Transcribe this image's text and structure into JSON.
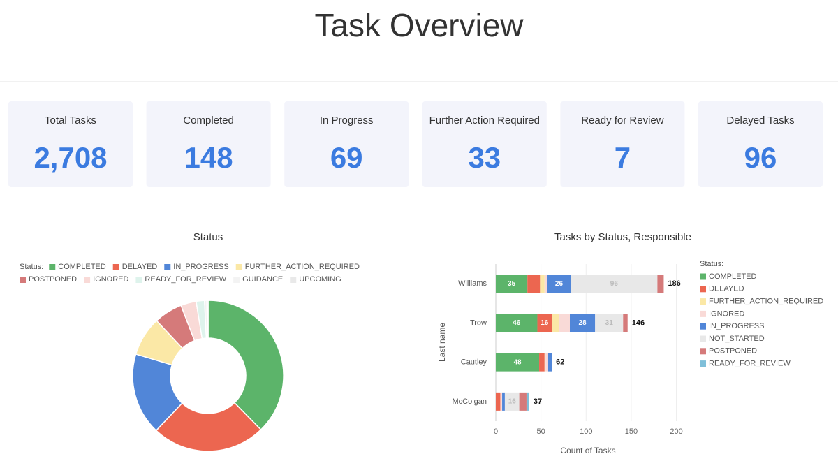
{
  "header": {
    "title": "Task Overview"
  },
  "kpis": [
    {
      "label": "Total Tasks",
      "value": 2708,
      "value_label": "2,708"
    },
    {
      "label": "Completed",
      "value": 148
    },
    {
      "label": "In Progress",
      "value": 69
    },
    {
      "label": "Further Action Required",
      "value": 33
    },
    {
      "label": "Ready for Review",
      "value": 7
    },
    {
      "label": "Delayed Tasks",
      "value": 96
    }
  ],
  "chart_data": [
    {
      "type": "pie",
      "title": "Status",
      "legend_title": "Status:",
      "donut": true,
      "categories": [
        "COMPLETED",
        "DELAYED",
        "IN_PROGRESS",
        "FURTHER_ACTION_REQUIRED",
        "POSTPONED",
        "IGNORED",
        "READY_FOR_REVIEW",
        "GUIDANCE",
        "UPCOMING"
      ],
      "values": [
        148,
        96,
        69,
        33,
        24,
        13,
        7,
        2,
        1
      ],
      "colors": [
        "#5cb46a",
        "#ec6650",
        "#5186d8",
        "#fbe8a6",
        "#d57a7a",
        "#f9dad7",
        "#def3ec",
        "#f3f3f3",
        "#e9e9e9"
      ]
    },
    {
      "type": "bar",
      "orientation": "horizontal",
      "stacked": true,
      "title": "Tasks by Status, Responsible",
      "x_label": "Count of Tasks",
      "y_label": "Last name",
      "legend_title": "Status:",
      "categories": [
        "Williams",
        "Trow",
        "Cautley",
        "McColgan"
      ],
      "series": [
        {
          "name": "COMPLETED",
          "color": "#5cb46a",
          "values": [
            35,
            46,
            48,
            null
          ]
        },
        {
          "name": "DELAYED",
          "color": "#ec6650",
          "values": [
            14,
            16,
            6,
            5
          ]
        },
        {
          "name": "FURTHER_ACTION_REQUIRED",
          "color": "#fbe8a6",
          "values": [
            5,
            8,
            1,
            null
          ]
        },
        {
          "name": "IGNORED",
          "color": "#f9dad7",
          "values": [
            3,
            12,
            3,
            2
          ]
        },
        {
          "name": "IN_PROGRESS",
          "color": "#5186d8",
          "values": [
            26,
            28,
            4,
            3
          ]
        },
        {
          "name": "NOT_STARTED",
          "color": "#e8e8e8",
          "values": [
            96,
            31,
            null,
            16
          ]
        },
        {
          "name": "POSTPONED",
          "color": "#d57a7a",
          "values": [
            7,
            5,
            null,
            8
          ]
        },
        {
          "name": "READY_FOR_REVIEW",
          "color": "#7fbfd9",
          "values": [
            null,
            null,
            null,
            3
          ]
        }
      ],
      "totals": [
        186,
        146,
        62,
        37
      ],
      "xlim": [
        0,
        205
      ],
      "xticks": [
        0,
        50,
        100,
        150,
        200
      ],
      "grid": true
    }
  ]
}
